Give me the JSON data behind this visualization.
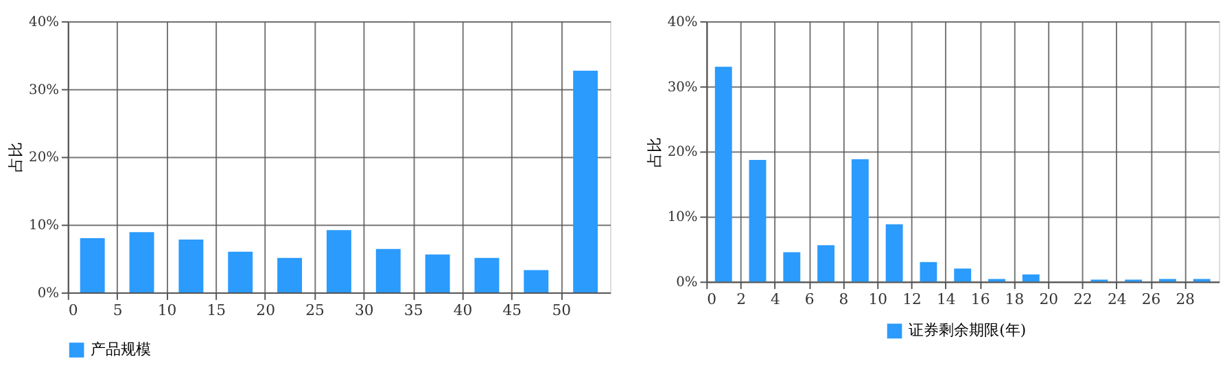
{
  "chart_data": [
    {
      "type": "histogram",
      "ylabel": "占比",
      "bins": [
        0,
        5,
        10,
        15,
        20,
        25,
        30,
        35,
        40,
        45,
        50,
        55
      ],
      "series": [
        {
          "name": "产品规模",
          "color": "#2b9bfd",
          "values": [
            8.0,
            8.9,
            7.8,
            6.0,
            5.1,
            9.2,
            6.4,
            5.6,
            5.1,
            3.3,
            32.7
          ]
        }
      ],
      "xlim": [
        0,
        55
      ],
      "xticks": [
        0,
        5,
        10,
        15,
        20,
        25,
        30,
        35,
        40,
        45,
        50
      ],
      "ylim": [
        0,
        40
      ],
      "yticks": [
        {
          "value": 0,
          "label": "0%"
        },
        {
          "value": 10,
          "label": "10%"
        },
        {
          "value": 20,
          "label": "20%"
        },
        {
          "value": 30,
          "label": "30%"
        },
        {
          "value": 40,
          "label": "40%"
        }
      ],
      "grid": true,
      "legend": "bottom"
    },
    {
      "type": "histogram",
      "ylabel": "占比",
      "bins": [
        0,
        2,
        4,
        6,
        8,
        10,
        12,
        14,
        16,
        18,
        20,
        22,
        24,
        26,
        28,
        30
      ],
      "series": [
        {
          "name": "证券剩余期限(年)",
          "color": "#2b9bfd",
          "values": [
            33.0,
            18.7,
            4.5,
            5.6,
            18.8,
            8.8,
            3.0,
            2.0,
            0.4,
            1.1,
            0,
            0.3,
            0.3,
            0.4,
            0.4
          ]
        }
      ],
      "xlim": [
        0,
        30
      ],
      "xticks": [
        0,
        2,
        4,
        6,
        8,
        10,
        12,
        14,
        16,
        18,
        20,
        22,
        24,
        26,
        28
      ],
      "ylim": [
        0,
        40
      ],
      "yticks": [
        {
          "value": 0,
          "label": "0%"
        },
        {
          "value": 10,
          "label": "10%"
        },
        {
          "value": 20,
          "label": "20%"
        },
        {
          "value": 30,
          "label": "30%"
        },
        {
          "value": 40,
          "label": "40%"
        }
      ],
      "grid": true,
      "legend": "bottom right"
    }
  ]
}
